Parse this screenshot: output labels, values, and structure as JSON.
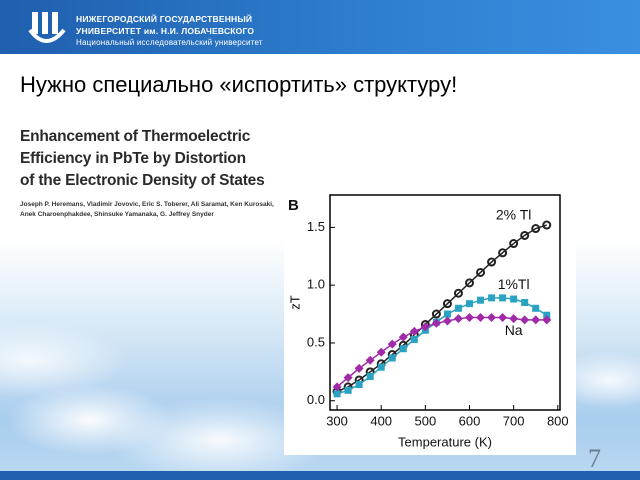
{
  "header": {
    "line1": "НИЖЕГОРОДСКИЙ ГОСУДАРСТВЕННЫЙ",
    "line2": "УНИВЕРСИТЕТ им. Н.И. ЛОБАЧЕВСКОГО",
    "line3": "Национальный исследовательский университет"
  },
  "title": "Нужно специально «испортить» структуру!",
  "paper": {
    "title_lines": [
      "Enhancement of Thermoelectric",
      "Efficiency in PbTe by Distortion",
      "of the Electronic Density of States"
    ],
    "authors": [
      "Joseph P. Heremans, Vladimir Jovovic, Eric S. Toberer, Ali Saramat, Ken Kurosaki,",
      "Anek Charoenphakdee, Shinsuke Yamanaka, G. Jeffrey Snyder"
    ]
  },
  "chart_data": {
    "type": "scatter-line",
    "panel": "B",
    "x_label": "Temperature (K)",
    "y_label": "zT",
    "x": [
      300,
      325,
      350,
      375,
      400,
      425,
      450,
      475,
      500,
      525,
      550,
      575,
      600,
      625,
      650,
      675,
      700,
      725,
      750,
      775
    ],
    "series": [
      {
        "name": "2% Tl",
        "color": "#222222",
        "marker": "circle",
        "values": [
          0.08,
          0.12,
          0.18,
          0.25,
          0.32,
          0.4,
          0.48,
          0.57,
          0.66,
          0.75,
          0.84,
          0.93,
          1.02,
          1.11,
          1.2,
          1.28,
          1.36,
          1.43,
          1.49,
          1.52
        ]
      },
      {
        "name": "1%Tl",
        "color": "#2aa3c2",
        "marker": "square",
        "values": [
          0.06,
          0.09,
          0.14,
          0.21,
          0.29,
          0.37,
          0.45,
          0.53,
          0.61,
          0.68,
          0.75,
          0.8,
          0.84,
          0.87,
          0.89,
          0.89,
          0.88,
          0.85,
          0.8,
          0.74
        ]
      },
      {
        "name": "Na",
        "color": "#a02aa8",
        "marker": "diamond",
        "values": [
          0.12,
          0.2,
          0.28,
          0.35,
          0.42,
          0.49,
          0.55,
          0.6,
          0.64,
          0.67,
          0.69,
          0.71,
          0.72,
          0.72,
          0.72,
          0.72,
          0.71,
          0.7,
          0.7,
          0.7
        ]
      }
    ],
    "xlim": [
      284,
      805
    ],
    "ylim": [
      -0.08,
      1.78
    ],
    "xticks": [
      300,
      400,
      500,
      600,
      700,
      800
    ],
    "yticks": [
      {
        "value": 0,
        "label": "0.0"
      },
      0.5,
      {
        "value": 1,
        "label": "1.0"
      },
      1.5
    ]
  },
  "page_number": "7"
}
